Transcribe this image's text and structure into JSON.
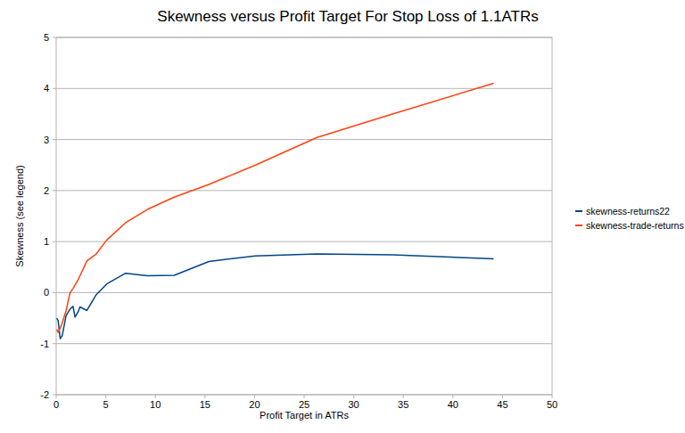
{
  "chart_data": {
    "type": "line",
    "title": "Skewness versus Profit Target For Stop Loss of 1.1ATRs",
    "x_label": "Profit Target in ATRs",
    "y_label": "Skewness (see legend)",
    "x": [
      0.05,
      0.2,
      0.4,
      0.6,
      1.0,
      1.4,
      1.7,
      1.9,
      2.2,
      2.4,
      3.1,
      4.0,
      5.1,
      7.0,
      9.2,
      11.9,
      15.4,
      20.1,
      26.3,
      33.9,
      44.1
    ],
    "series": [
      {
        "name": "skewness-returns22",
        "color": "#004586",
        "values": [
          -0.5,
          -0.55,
          -0.9,
          -0.85,
          -0.45,
          -0.32,
          -0.27,
          -0.48,
          -0.38,
          -0.28,
          -0.35,
          -0.05,
          0.17,
          0.38,
          0.33,
          0.34,
          0.61,
          0.72,
          0.76,
          0.74,
          0.66
        ]
      },
      {
        "name": "skewness-trade-returns",
        "color": "#ff420e",
        "values": [
          -0.72,
          -0.78,
          -0.7,
          -0.6,
          -0.35,
          0.0,
          0.08,
          0.15,
          0.25,
          0.33,
          0.62,
          0.75,
          1.03,
          1.37,
          1.63,
          1.87,
          2.12,
          2.5,
          3.04,
          3.5,
          4.1
        ]
      }
    ],
    "xlim": [
      0,
      50
    ],
    "xticks": [
      0,
      5,
      10,
      15,
      20,
      25,
      30,
      35,
      40,
      45,
      50
    ],
    "ylim": [
      -2,
      5
    ],
    "yticks": [
      -2,
      -1,
      0,
      1,
      2,
      3,
      4,
      5
    ],
    "grid": true,
    "legend": "right"
  }
}
